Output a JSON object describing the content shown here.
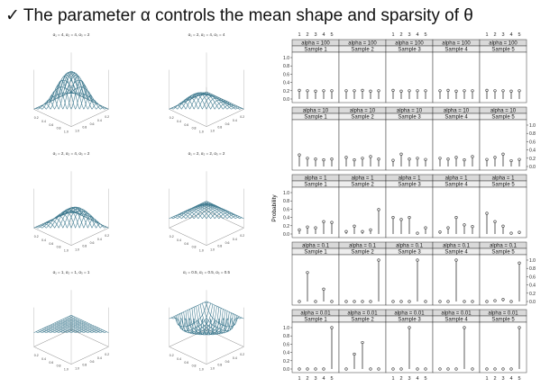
{
  "slide": {
    "checkmark": "✓",
    "title": "The parameter α controls the mean shape and sparsity of θ"
  },
  "surfaces": [
    {
      "caption": "α₁ = 4, α₂ = 4, α₃ = 2",
      "shape": "peak-center"
    },
    {
      "caption": "α₁ = 2, α₂ = 4, α₃ = 4",
      "shape": "peak-right"
    },
    {
      "caption": "α₁ = 2, α₂ = 4, α₃ = 2",
      "shape": "peak-left"
    },
    {
      "caption": "α₁ = 2, α₂ = 2, α₃ = 2",
      "shape": "dome"
    },
    {
      "caption": "α₁ = 1, α₂ = 1, α₃ = 1",
      "shape": "flat"
    },
    {
      "caption": "α₁ = 0.5, α₂ = 0.5, α₃ = 0.5",
      "shape": "corners"
    }
  ],
  "surface_axis_ticks": [
    "0.2",
    "0.4",
    "0.6",
    "0.8",
    "1.0"
  ],
  "chart_data": {
    "type": "stem",
    "xlabel": "Event",
    "ylabel": "Probability",
    "x": [
      1,
      2,
      3,
      4,
      5
    ],
    "ylim": [
      0,
      1
    ],
    "y_ticks": [
      "0.0",
      "0.2",
      "0.4",
      "0.6",
      "0.8",
      "1.0"
    ],
    "samples": [
      "Sample 1",
      "Sample 2",
      "Sample 3",
      "Sample 4",
      "Sample 5"
    ],
    "rows": [
      {
        "alpha": "alpha = 100",
        "values": [
          [
            0.21,
            0.2,
            0.19,
            0.2,
            0.2
          ],
          [
            0.2,
            0.2,
            0.21,
            0.19,
            0.2
          ],
          [
            0.21,
            0.19,
            0.2,
            0.2,
            0.2
          ],
          [
            0.2,
            0.21,
            0.19,
            0.2,
            0.2
          ],
          [
            0.21,
            0.2,
            0.2,
            0.19,
            0.2
          ]
        ]
      },
      {
        "alpha": "alpha = 10",
        "values": [
          [
            0.28,
            0.2,
            0.18,
            0.16,
            0.18
          ],
          [
            0.22,
            0.16,
            0.2,
            0.24,
            0.18
          ],
          [
            0.15,
            0.3,
            0.18,
            0.2,
            0.17
          ],
          [
            0.2,
            0.18,
            0.22,
            0.16,
            0.24
          ],
          [
            0.17,
            0.22,
            0.3,
            0.14,
            0.17
          ]
        ]
      },
      {
        "alpha": "alpha = 1",
        "values": [
          [
            0.1,
            0.17,
            0.15,
            0.3,
            0.28
          ],
          [
            0.06,
            0.19,
            0.06,
            0.1,
            0.59
          ],
          [
            0.4,
            0.35,
            0.4,
            0.02,
            0.15
          ],
          [
            0.05,
            0.15,
            0.4,
            0.22,
            0.18
          ],
          [
            0.5,
            0.3,
            0.19,
            0.02,
            0.04
          ]
        ]
      },
      {
        "alpha": "alpha = 0.1",
        "values": [
          [
            0.0,
            0.7,
            0.0,
            0.3,
            0.0
          ],
          [
            0.0,
            0.0,
            0.0,
            0.0,
            1.0
          ],
          [
            0.0,
            0.0,
            0.0,
            1.0,
            0.0
          ],
          [
            0.0,
            0.0,
            1.0,
            0.0,
            0.0
          ],
          [
            0.0,
            0.02,
            0.05,
            0.0,
            0.93
          ]
        ]
      },
      {
        "alpha": "alpha = 0.01",
        "values": [
          [
            0.0,
            0.0,
            0.0,
            0.0,
            1.0
          ],
          [
            0.0,
            0.36,
            0.64,
            0.0,
            0.0
          ],
          [
            0.0,
            0.0,
            1.0,
            0.0,
            0.0
          ],
          [
            0.0,
            0.0,
            0.0,
            1.0,
            0.0
          ],
          [
            0.0,
            0.0,
            0.0,
            0.0,
            1.0
          ]
        ]
      }
    ]
  }
}
